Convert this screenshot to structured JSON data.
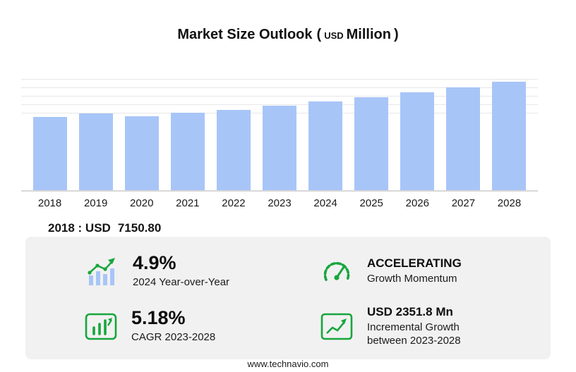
{
  "header": {
    "title": "Market Size Outlook",
    "paren_open": "(",
    "unit_currency": "USD",
    "unit_scale": "Million",
    "paren_close": ")"
  },
  "chart_data": {
    "type": "bar",
    "title": "Market Size Outlook (USD Million)",
    "unit": "USD Million",
    "categories": [
      "2018",
      "2019",
      "2020",
      "2021",
      "2022",
      "2023",
      "2024",
      "2025",
      "2026",
      "2027",
      "2028"
    ],
    "values": [
      7150.8,
      7480,
      7190,
      7520,
      7800,
      8195,
      8596.6,
      9010,
      9490,
      10020,
      10546.8
    ],
    "values_estimated": true,
    "labeled_points": {
      "2018": 7150.8
    },
    "ylim": [
      0,
      11000
    ],
    "bar_color": "#a8c5f8",
    "grid": "faint horizontal gridlines near top only",
    "legend": "none",
    "xlabel": "",
    "ylabel": ""
  },
  "base_year": {
    "label": "2018 : USD",
    "value": "7150.80"
  },
  "stats": [
    {
      "value": "4.9%",
      "label": "2024 Year-over-Year",
      "icon": "yoy-bars-icon"
    },
    {
      "value": "ACCELERATING",
      "label": "Growth Momentum",
      "icon": "speedometer-icon"
    },
    {
      "value": "5.18%",
      "label": "CAGR 2023-2028",
      "icon": "cagr-chart-icon"
    },
    {
      "value": "USD 2351.8 Mn",
      "label": "Incremental Growth between 2023-2028",
      "icon": "incremental-growth-icon"
    }
  ],
  "footer": {
    "url": "www.technavio.com"
  },
  "colors": {
    "bar_blue": "#a8c5f8",
    "accent_green": "#17a63d",
    "panel_gray": "#f1f1f1",
    "gridline": "#e7e7e7",
    "text_dark": "#161616"
  }
}
